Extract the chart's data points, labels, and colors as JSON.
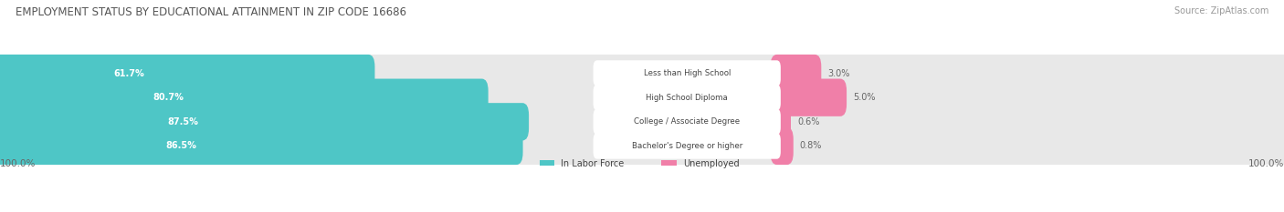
{
  "title": "EMPLOYMENT STATUS BY EDUCATIONAL ATTAINMENT IN ZIP CODE 16686",
  "source": "Source: ZipAtlas.com",
  "categories": [
    "Less than High School",
    "High School Diploma",
    "College / Associate Degree",
    "Bachelor's Degree or higher"
  ],
  "in_labor_force": [
    61.7,
    80.7,
    87.5,
    86.5
  ],
  "unemployed": [
    3.0,
    5.0,
    0.6,
    0.8
  ],
  "labor_color": "#4EC6C6",
  "unemployed_color": "#F07FA8",
  "row_bg_color": "#EBEBEB",
  "left_label": "100.0%",
  "right_label": "100.0%",
  "background_color": "#FFFFFF",
  "title_color": "#555555",
  "source_color": "#999999",
  "value_label_color": "#FFFFFF",
  "pct_label_color": "#666666",
  "cat_label_color": "#444444"
}
